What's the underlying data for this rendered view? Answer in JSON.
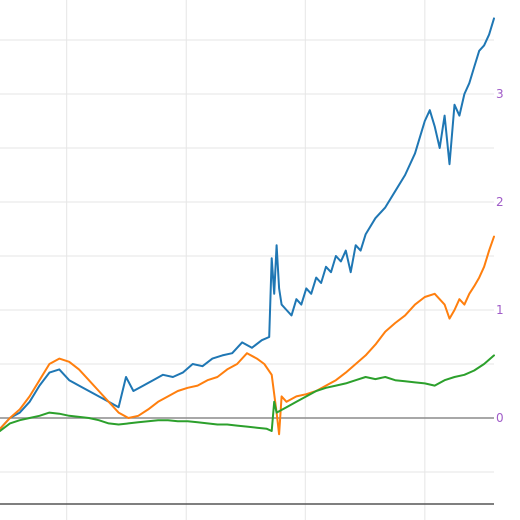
{
  "chart_data": {
    "type": "line",
    "title": "",
    "xlabel": "",
    "ylabel": "",
    "y_axis_side": "right",
    "ylim": [
      -0.2,
      3.75
    ],
    "y_ticks": [
      {
        "value": 0,
        "label": "0"
      },
      {
        "value": 1,
        "label": "1"
      },
      {
        "value": 2,
        "label": "2"
      },
      {
        "value": 3,
        "label": "3"
      }
    ],
    "x_range": [
      0,
      100
    ],
    "x_gridlines": [
      13.5,
      37.7,
      61.8,
      86.0
    ],
    "legend": "none",
    "series": [
      {
        "color": "#1f77b4",
        "x": [
          0,
          2,
          4,
          6,
          8,
          10,
          12,
          14,
          16,
          18,
          20,
          22,
          24,
          25.5,
          27,
          29,
          31,
          33,
          35,
          37,
          39,
          41,
          43,
          45,
          47,
          49,
          51,
          53,
          54.5,
          55,
          55.5,
          56,
          56.5,
          57,
          58,
          59,
          60,
          61,
          62,
          63,
          64,
          65,
          66,
          67,
          68,
          69,
          70,
          71,
          72,
          73,
          74,
          76,
          78,
          80,
          82,
          84,
          85,
          86,
          87,
          88,
          89,
          90,
          91,
          92,
          93,
          94,
          95,
          96,
          97,
          98,
          99,
          100
        ],
        "y": [
          -0.1,
          0.0,
          0.05,
          0.15,
          0.3,
          0.42,
          0.45,
          0.35,
          0.3,
          0.25,
          0.2,
          0.15,
          0.1,
          0.38,
          0.25,
          0.3,
          0.35,
          0.4,
          0.38,
          0.42,
          0.5,
          0.48,
          0.55,
          0.58,
          0.6,
          0.7,
          0.65,
          0.72,
          0.75,
          1.48,
          1.15,
          1.6,
          1.2,
          1.05,
          1.0,
          0.95,
          1.1,
          1.05,
          1.2,
          1.15,
          1.3,
          1.25,
          1.4,
          1.35,
          1.5,
          1.45,
          1.55,
          1.35,
          1.6,
          1.55,
          1.7,
          1.85,
          1.95,
          2.1,
          2.25,
          2.45,
          2.6,
          2.75,
          2.85,
          2.7,
          2.5,
          2.8,
          2.35,
          2.9,
          2.8,
          3.0,
          3.1,
          3.25,
          3.4,
          3.45,
          3.55,
          3.7
        ]
      },
      {
        "color": "#ff7f0e",
        "x": [
          0,
          2,
          4,
          6,
          8,
          10,
          12,
          14,
          16,
          18,
          20,
          22,
          24,
          26,
          28,
          30,
          32,
          34,
          36,
          38,
          40,
          42,
          44,
          46,
          48,
          50,
          52,
          53.5,
          55,
          56,
          56.5,
          57,
          58,
          60,
          62,
          64,
          66,
          68,
          70,
          72,
          74,
          76,
          78,
          80,
          82,
          84,
          86,
          88,
          90,
          91,
          92,
          93,
          94,
          95,
          96,
          97,
          98,
          99,
          100
        ],
        "y": [
          -0.1,
          0.0,
          0.08,
          0.2,
          0.35,
          0.5,
          0.55,
          0.52,
          0.45,
          0.35,
          0.25,
          0.15,
          0.05,
          0.0,
          0.02,
          0.08,
          0.15,
          0.2,
          0.25,
          0.28,
          0.3,
          0.35,
          0.38,
          0.45,
          0.5,
          0.6,
          0.55,
          0.5,
          0.4,
          0.05,
          -0.15,
          0.2,
          0.15,
          0.2,
          0.22,
          0.25,
          0.3,
          0.35,
          0.42,
          0.5,
          0.58,
          0.68,
          0.8,
          0.88,
          0.95,
          1.05,
          1.12,
          1.15,
          1.05,
          0.92,
          1.0,
          1.1,
          1.05,
          1.15,
          1.22,
          1.3,
          1.4,
          1.55,
          1.68
        ]
      },
      {
        "color": "#2ca02c",
        "x": [
          0,
          2,
          4,
          6,
          8,
          10,
          12,
          14,
          16,
          18,
          20,
          22,
          24,
          26,
          28,
          30,
          32,
          34,
          36,
          38,
          40,
          42,
          44,
          46,
          48,
          50,
          52,
          54,
          55,
          55.5,
          56,
          58,
          60,
          62,
          64,
          66,
          68,
          70,
          72,
          74,
          76,
          78,
          80,
          82,
          84,
          86,
          88,
          90,
          92,
          94,
          96,
          98,
          100
        ],
        "y": [
          -0.12,
          -0.05,
          -0.02,
          0.0,
          0.02,
          0.05,
          0.04,
          0.02,
          0.01,
          0.0,
          -0.02,
          -0.05,
          -0.06,
          -0.05,
          -0.04,
          -0.03,
          -0.02,
          -0.02,
          -0.03,
          -0.03,
          -0.04,
          -0.05,
          -0.06,
          -0.06,
          -0.07,
          -0.08,
          -0.09,
          -0.1,
          -0.12,
          0.15,
          0.05,
          0.1,
          0.15,
          0.2,
          0.25,
          0.28,
          0.3,
          0.32,
          0.35,
          0.38,
          0.36,
          0.38,
          0.35,
          0.34,
          0.33,
          0.32,
          0.3,
          0.35,
          0.38,
          0.4,
          0.44,
          0.5,
          0.58
        ]
      }
    ]
  }
}
